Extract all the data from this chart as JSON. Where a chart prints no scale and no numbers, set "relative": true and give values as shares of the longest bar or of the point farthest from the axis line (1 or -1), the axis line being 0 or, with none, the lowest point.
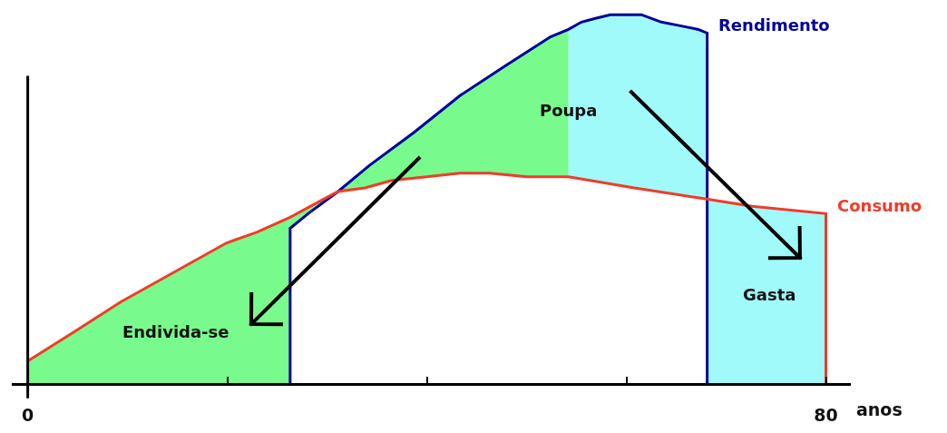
{
  "chart_data": {
    "type": "line",
    "relative": true,
    "xlabel": "anos",
    "xlim": [
      -1.6,
      82.5
    ],
    "xticks": [
      0,
      {
        "value": 20,
        "label": null
      },
      {
        "value": 40,
        "label": null
      },
      {
        "value": 60,
        "label": null
      },
      80
    ],
    "series": [
      {
        "name": "Rendimento",
        "color": "#000099",
        "x": [
          26.3,
          26.3,
          28.1,
          31.1,
          34.2,
          38.7,
          43.3,
          47.8,
          50.1,
          52.4,
          54.2,
          55.5,
          56.9,
          58.4,
          59.9,
          61.5,
          63.5,
          65.4,
          67.2,
          68.1,
          68.1
        ],
        "values": [
          0,
          0.42,
          0.46,
          0.52,
          0.59,
          0.68,
          0.78,
          0.86,
          0.9,
          0.94,
          0.96,
          0.98,
          0.99,
          1,
          1,
          1,
          0.98,
          0.97,
          0.96,
          0.95,
          0
        ]
      },
      {
        "name": "Consumo",
        "color": "#f03c28",
        "x": [
          0,
          4.7,
          9.3,
          14.6,
          19.9,
          23,
          26.3,
          29.7,
          31.1,
          33.8,
          36.5,
          40,
          43.3,
          46.3,
          50,
          54.2,
          60.8,
          67.9,
          72.6,
          80,
          80
        ],
        "values": [
          0.06,
          0.14,
          0.22,
          0.3,
          0.38,
          0.41,
          0.45,
          0.5,
          0.52,
          0.53,
          0.55,
          0.56,
          0.57,
          0.57,
          0.56,
          0.56,
          0.53,
          0.5,
          0.48,
          0.46,
          0
        ]
      }
    ],
    "annotations": [
      "Endivida-se",
      "Poupa",
      "Gasta"
    ]
  }
}
